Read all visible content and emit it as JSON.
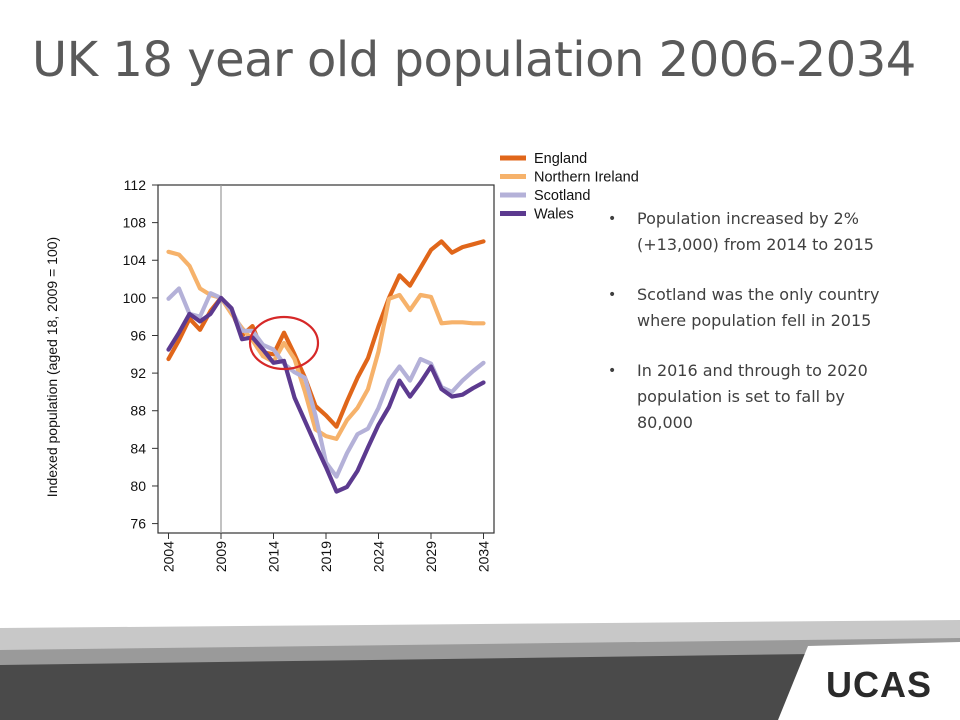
{
  "slide": {
    "title": "UK 18 year old population 2006-2034",
    "bullets": [
      "Population increased by 2% (+13,000) from 2014 to 2015",
      "Scotland was the only country where population fell in 2015",
      "In 2016 and through to 2020 population is set to fall by 80,000"
    ],
    "logo_text": "UCAS"
  },
  "chart_data": {
    "type": "line",
    "title": "",
    "xlabel": "",
    "ylabel": "Indexed population (aged 18, 2009 = 100)",
    "xlim": [
      2003,
      2035
    ],
    "ylim": [
      75,
      112
    ],
    "x_ticks": [
      "2004",
      "2009",
      "2014",
      "2019",
      "2024",
      "2029",
      "2034"
    ],
    "y_ticks": [
      "112",
      "108",
      "104",
      "100",
      "96",
      "92",
      "88",
      "84",
      "80",
      "76"
    ],
    "vline_x": 2009,
    "legend_position": "top-right (outside)",
    "highlight_circle": {
      "x": 2015,
      "y": 95.2
    },
    "x": [
      2004,
      2005,
      2006,
      2007,
      2008,
      2009,
      2010,
      2011,
      2012,
      2013,
      2014,
      2015,
      2016,
      2017,
      2018,
      2019,
      2020,
      2021,
      2022,
      2023,
      2024,
      2025,
      2026,
      2027,
      2028,
      2029,
      2030,
      2031,
      2032,
      2033,
      2034
    ],
    "series": [
      {
        "name": "England",
        "color": "#e0661a",
        "values": [
          93.5,
          95.5,
          97.8,
          96.6,
          98.6,
          100.0,
          98.6,
          96.0,
          97.0,
          94.2,
          94.0,
          96.3,
          94.0,
          91.5,
          88.5,
          87.5,
          86.3,
          89.0,
          91.5,
          93.6,
          97.0,
          100.0,
          102.4,
          101.3,
          103.2,
          105.1,
          106.0,
          104.8,
          105.4,
          105.7,
          106.0
        ]
      },
      {
        "name": "Northern Ireland",
        "color": "#f6b26b",
        "values": [
          104.9,
          104.6,
          103.4,
          101.0,
          100.3,
          100.0,
          98.3,
          96.8,
          95.5,
          93.8,
          93.2,
          95.2,
          93.5,
          90.0,
          86.0,
          85.3,
          85.0,
          87.0,
          88.3,
          90.3,
          94.3,
          99.9,
          100.3,
          98.7,
          100.3,
          100.1,
          97.3,
          97.4,
          97.4,
          97.3,
          97.3
        ]
      },
      {
        "name": "Scotland",
        "color": "#b4b1d8",
        "values": [
          99.9,
          101.0,
          98.3,
          98.0,
          100.5,
          100.0,
          98.7,
          96.5,
          96.5,
          95.0,
          94.5,
          93.0,
          92.1,
          91.5,
          87.5,
          82.5,
          81.0,
          83.5,
          85.5,
          86.1,
          88.3,
          91.2,
          92.7,
          91.2,
          93.5,
          93.0,
          90.5,
          90.0,
          91.2,
          92.2,
          93.1
        ]
      },
      {
        "name": "Wales",
        "color": "#5c3a8f",
        "values": [
          94.5,
          96.3,
          98.3,
          97.5,
          98.3,
          100.0,
          98.9,
          95.6,
          95.8,
          94.5,
          93.1,
          93.3,
          89.4,
          86.9,
          84.4,
          82.0,
          79.4,
          79.9,
          81.6,
          84.1,
          86.5,
          88.4,
          91.2,
          89.5,
          91.0,
          92.7,
          90.3,
          89.5,
          89.7,
          90.4,
          91.0
        ]
      }
    ]
  },
  "colors": {
    "highlight_circle": "#d62828",
    "vline": "#999999",
    "footer_dark": "#4a4a4a",
    "footer_mid": "#9a9a9a",
    "footer_light": "#c8c8c8"
  }
}
